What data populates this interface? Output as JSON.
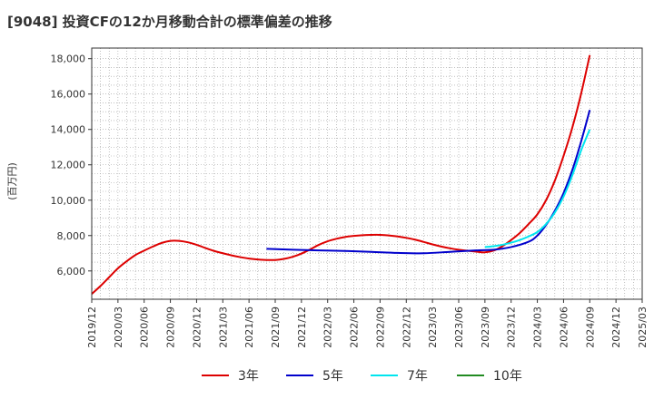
{
  "chart_data": {
    "type": "line",
    "title": "[9048]  投資CFの12か月移動合計の標準偏差の推移",
    "ylabel": "(百万円)",
    "xlabel": "",
    "x_ticks": [
      "2019/12",
      "2020/03",
      "2020/06",
      "2020/09",
      "2020/12",
      "2021/03",
      "2021/06",
      "2021/09",
      "2021/12",
      "2022/03",
      "2022/06",
      "2022/09",
      "2022/12",
      "2023/03",
      "2023/06",
      "2023/09",
      "2023/12",
      "2024/03",
      "2024/06",
      "2024/09",
      "2024/12",
      "2025/03"
    ],
    "y_ticks": [
      "6,000",
      "8,000",
      "10,000",
      "12,000",
      "14,000",
      "16,000",
      "18,000"
    ],
    "y_tick_values": [
      6000,
      8000,
      10000,
      12000,
      14000,
      16000,
      18000
    ],
    "ylim": [
      4400,
      18600
    ],
    "grid": true,
    "legend_position": "bottom",
    "series": [
      {
        "name": "3年",
        "color": "#dd0000",
        "points": [
          [
            "2019/12",
            4700
          ],
          [
            "2020/01",
            5150
          ],
          [
            "2020/02",
            5650
          ],
          [
            "2020/03",
            6150
          ],
          [
            "2020/04",
            6550
          ],
          [
            "2020/05",
            6900
          ],
          [
            "2020/06",
            7150
          ],
          [
            "2020/07",
            7380
          ],
          [
            "2020/08",
            7580
          ],
          [
            "2020/09",
            7700
          ],
          [
            "2020/10",
            7700
          ],
          [
            "2020/11",
            7620
          ],
          [
            "2020/12",
            7480
          ],
          [
            "2021/01",
            7300
          ],
          [
            "2021/02",
            7130
          ],
          [
            "2021/03",
            7000
          ],
          [
            "2021/04",
            6880
          ],
          [
            "2021/05",
            6780
          ],
          [
            "2021/06",
            6700
          ],
          [
            "2021/07",
            6650
          ],
          [
            "2021/08",
            6620
          ],
          [
            "2021/09",
            6620
          ],
          [
            "2021/10",
            6680
          ],
          [
            "2021/11",
            6800
          ],
          [
            "2021/12",
            6980
          ],
          [
            "2022/01",
            7220
          ],
          [
            "2022/02",
            7480
          ],
          [
            "2022/03",
            7680
          ],
          [
            "2022/04",
            7820
          ],
          [
            "2022/05",
            7920
          ],
          [
            "2022/06",
            7980
          ],
          [
            "2022/07",
            8020
          ],
          [
            "2022/08",
            8040
          ],
          [
            "2022/09",
            8040
          ],
          [
            "2022/10",
            8010
          ],
          [
            "2022/11",
            7950
          ],
          [
            "2022/12",
            7870
          ],
          [
            "2023/01",
            7770
          ],
          [
            "2023/02",
            7640
          ],
          [
            "2023/03",
            7500
          ],
          [
            "2023/04",
            7380
          ],
          [
            "2023/05",
            7280
          ],
          [
            "2023/06",
            7200
          ],
          [
            "2023/07",
            7140
          ],
          [
            "2023/08",
            7090
          ],
          [
            "2023/09",
            7050
          ],
          [
            "2023/10",
            7150
          ],
          [
            "2023/11",
            7400
          ],
          [
            "2023/12",
            7750
          ],
          [
            "2024/01",
            8150
          ],
          [
            "2024/02",
            8650
          ],
          [
            "2024/03",
            9200
          ],
          [
            "2024/04",
            10000
          ],
          [
            "2024/05",
            11100
          ],
          [
            "2024/06",
            12500
          ],
          [
            "2024/07",
            14100
          ],
          [
            "2024/08",
            16000
          ],
          [
            "2024/09",
            18200
          ]
        ]
      },
      {
        "name": "5年",
        "color": "#0000cc",
        "points": [
          [
            "2021/08",
            7250
          ],
          [
            "2021/11",
            7200
          ],
          [
            "2022/02",
            7160
          ],
          [
            "2022/05",
            7130
          ],
          [
            "2022/08",
            7080
          ],
          [
            "2022/11",
            7020
          ],
          [
            "2023/02",
            7000
          ],
          [
            "2023/05",
            7080
          ],
          [
            "2023/08",
            7160
          ],
          [
            "2023/10",
            7200
          ],
          [
            "2023/12",
            7350
          ],
          [
            "2024/02",
            7650
          ],
          [
            "2024/03",
            8000
          ],
          [
            "2024/04",
            8600
          ],
          [
            "2024/05",
            9400
          ],
          [
            "2024/06",
            10400
          ],
          [
            "2024/07",
            11700
          ],
          [
            "2024/08",
            13300
          ],
          [
            "2024/09",
            15100
          ]
        ]
      },
      {
        "name": "7年",
        "color": "#00e5ee",
        "points": [
          [
            "2023/09",
            7350
          ],
          [
            "2023/10",
            7400
          ],
          [
            "2023/11",
            7480
          ],
          [
            "2023/12",
            7600
          ],
          [
            "2024/01",
            7750
          ],
          [
            "2024/02",
            7950
          ],
          [
            "2024/03",
            8200
          ],
          [
            "2024/04",
            8650
          ],
          [
            "2024/05",
            9300
          ],
          [
            "2024/06",
            10200
          ],
          [
            "2024/07",
            11400
          ],
          [
            "2024/08",
            12800
          ],
          [
            "2024/09",
            14000
          ]
        ]
      },
      {
        "name": "10年",
        "color": "#228b22",
        "points": []
      }
    ]
  }
}
